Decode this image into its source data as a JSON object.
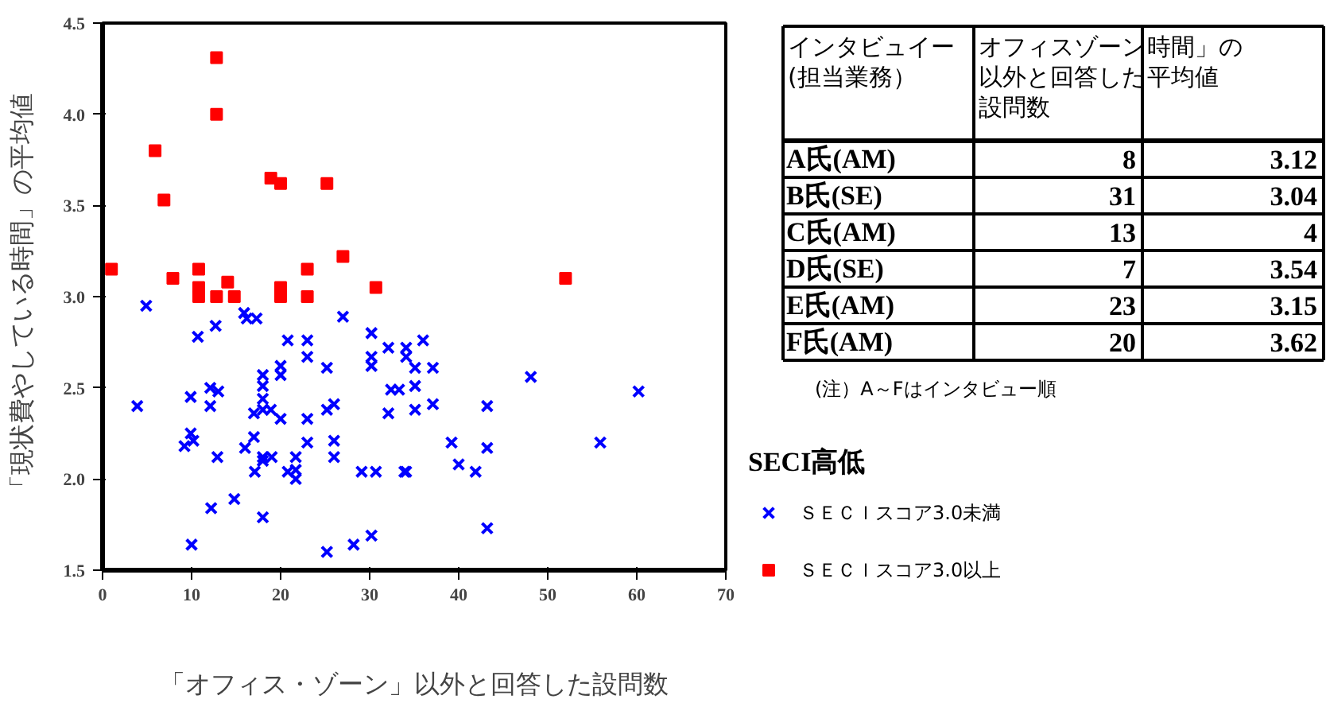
{
  "chart_data": [
    {
      "type": "scatter",
      "xlabel": "「オフィス・ゾーン」以外と回答した設問数",
      "ylabel": "「現状費やしている時間」の平均値",
      "legend_title": "SECI高低",
      "legend": "right",
      "grid": false,
      "xlim": [
        0,
        70
      ],
      "xticks": [
        0,
        10,
        20,
        30,
        40,
        50,
        60,
        70
      ],
      "ylim": [
        1.5,
        4.5
      ],
      "yticks": [
        1.5,
        {
          "value": 2,
          "label": "2.0"
        },
        2.5,
        {
          "value": 3,
          "label": "3.0"
        },
        3.5,
        {
          "value": 4,
          "label": "4.0"
        },
        4.5
      ],
      "series": [
        {
          "name": "ＳＥＣＩスコア3.0未満",
          "color": "#0000ff",
          "marker": "cross",
          "x": [
            4.9,
            3.9,
            9.9,
            10.7,
            12.7,
            12.1,
            12.1,
            13.0,
            15.9,
            16.2,
            17.3,
            9.2,
            9.9,
            10.2,
            12.9,
            12.2,
            14.8,
            10.0,
            16.0,
            17.0,
            17.0,
            18.0,
            18.0,
            18.0,
            18.0,
            17.1,
            18.0,
            18.0,
            19.0,
            18.0,
            20.0,
            20.0,
            18.9,
            20.0,
            20.8,
            20.8,
            21.7,
            21.7,
            21.7,
            23.0,
            23.0,
            23.0,
            23.0,
            25.2,
            25.2,
            26.0,
            26.0,
            26.0,
            27.0,
            25.2,
            28.2,
            30.2,
            30.2,
            30.2,
            30.2,
            29.1,
            32.1,
            32.4,
            33.3,
            32.1,
            34.1,
            34.1,
            34.1,
            36.0,
            35.1,
            35.1,
            35.1,
            37.1,
            37.1,
            48.1,
            60.2,
            43.2,
            39.2,
            43.2,
            40.0,
            41.9,
            55.9,
            30.7,
            33.9,
            43.2
          ],
          "values": [
            2.95,
            2.4,
            2.45,
            2.78,
            2.84,
            2.5,
            2.4,
            2.48,
            2.91,
            2.88,
            2.88,
            2.18,
            2.25,
            2.21,
            2.12,
            1.84,
            1.89,
            1.64,
            2.17,
            2.23,
            2.36,
            2.57,
            2.51,
            2.44,
            2.38,
            2.04,
            2.1,
            2.12,
            2.12,
            1.79,
            2.62,
            2.57,
            2.38,
            2.33,
            2.76,
            2.04,
            2.05,
            2.0,
            2.12,
            2.76,
            2.67,
            2.33,
            2.2,
            2.61,
            2.38,
            2.41,
            2.21,
            2.12,
            2.89,
            1.6,
            1.64,
            2.8,
            2.67,
            2.62,
            1.69,
            2.04,
            2.72,
            2.49,
            2.49,
            2.36,
            2.72,
            2.67,
            2.04,
            2.76,
            2.61,
            2.51,
            2.38,
            2.61,
            2.41,
            2.56,
            2.48,
            2.4,
            2.2,
            2.17,
            2.08,
            2.04,
            2.2,
            2.04,
            2.04,
            1.73
          ]
        },
        {
          "name": "ＳＥＣＩスコア3.0以上",
          "color": "#ff0000",
          "marker": "square",
          "x": [
            1.0,
            12.8,
            12.8,
            5.9,
            6.9,
            7.9,
            10.8,
            10.8,
            10.8,
            12.8,
            14.05,
            14.8,
            18.9,
            20.0,
            20.0,
            20.0,
            23.0,
            23.0,
            25.2,
            27.0,
            30.7,
            52.0
          ],
          "values": [
            3.15,
            4.31,
            4.0,
            3.8,
            3.53,
            3.1,
            3.15,
            3.05,
            3.0,
            3.0,
            3.08,
            3.0,
            3.65,
            3.62,
            3.05,
            3.0,
            3.15,
            3.0,
            3.62,
            3.22,
            3.05,
            3.1
          ]
        }
      ]
    },
    {
      "type": "other",
      "annotations": [
        "インタビュイー(担当業務）",
        "オフィスゾーン以外と回答した設問数",
        "時間」の平均値",
        "A氏(AM)",
        "8",
        "3.12",
        "B氏(SE)",
        "31",
        "3.04",
        "C氏(AM)",
        "13",
        "4",
        "D氏(SE)",
        "7",
        "3.54",
        "E氏(AM)",
        "23",
        "3.15",
        "F氏(AM)",
        "20",
        "3.62",
        "(注）A～Fはインタビュー順"
      ]
    }
  ]
}
